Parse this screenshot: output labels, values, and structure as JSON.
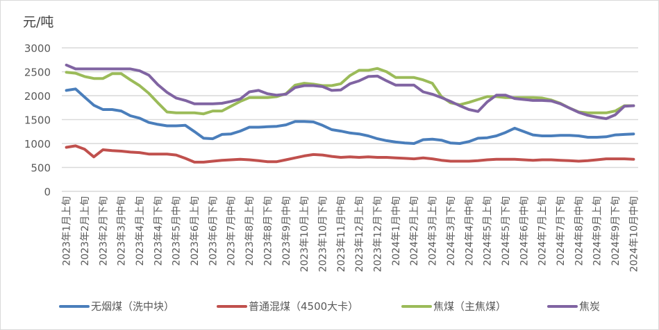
{
  "chart_data": {
    "type": "line",
    "title": "",
    "ylabel": "元/吨",
    "xlabel": "",
    "ylim": [
      0,
      3000
    ],
    "yticks": [
      0,
      500,
      1000,
      1500,
      2000,
      2500,
      3000
    ],
    "grid": true,
    "legend_position": "bottom",
    "num_points": 63,
    "visible_xtick_labels": [
      "2023年1月上旬",
      "2023年2月上旬",
      "2023年2月下旬",
      "2023年3月中旬",
      "2023年4月上旬",
      "2023年4月下旬",
      "2023年5月中旬",
      "2023年6月上旬",
      "2023年6月下旬",
      "2023年7月中旬",
      "2023年8月上旬",
      "2023年8月下旬",
      "2023年9月中旬",
      "2023年10月上旬",
      "2023年10月下旬",
      "2023年11月中旬",
      "2023年12月上旬",
      "2023年12月下旬",
      "2024年1月中旬",
      "2024年2月上旬",
      "2024年3月上旬",
      "2024年3月下旬",
      "2024年4月中旬",
      "2024年5月上旬",
      "2024年5月下旬",
      "2024年6月中旬",
      "2024年7月上旬",
      "2024年7月下旬",
      "2024年8月中旬",
      "2024年9月上旬",
      "2024年9月下旬",
      "2024年10月中旬"
    ],
    "xtick_every": 2,
    "series": [
      {
        "name": "无烟煤（洗中块）",
        "color": "#4a7ebb",
        "values": [
          2110,
          2140,
          1970,
          1800,
          1710,
          1710,
          1680,
          1580,
          1530,
          1440,
          1400,
          1370,
          1370,
          1380,
          1250,
          1110,
          1100,
          1190,
          1200,
          1260,
          1340,
          1340,
          1350,
          1360,
          1390,
          1460,
          1460,
          1450,
          1380,
          1290,
          1260,
          1220,
          1200,
          1160,
          1100,
          1060,
          1030,
          1010,
          1000,
          1080,
          1090,
          1070,
          1010,
          1000,
          1040,
          1110,
          1120,
          1160,
          1230,
          1320,
          1250,
          1180,
          1160,
          1160,
          1170,
          1170,
          1160,
          1130,
          1130,
          1140,
          1180,
          1190,
          1200
        ]
      },
      {
        "name": "普通混煤（4500大卡）",
        "color": "#c0504d",
        "values": [
          920,
          950,
          880,
          720,
          870,
          850,
          840,
          820,
          810,
          780,
          780,
          780,
          760,
          690,
          610,
          610,
          630,
          650,
          660,
          670,
          660,
          640,
          620,
          620,
          660,
          700,
          740,
          770,
          760,
          730,
          710,
          720,
          710,
          720,
          710,
          710,
          700,
          690,
          680,
          700,
          680,
          650,
          630,
          630,
          630,
          640,
          660,
          670,
          670,
          670,
          660,
          650,
          660,
          660,
          650,
          640,
          630,
          640,
          660,
          680,
          680,
          680,
          670
        ]
      },
      {
        "name": "焦煤（主焦煤）",
        "color": "#9bbb59",
        "values": [
          2490,
          2470,
          2400,
          2360,
          2360,
          2460,
          2460,
          2330,
          2210,
          2050,
          1850,
          1660,
          1640,
          1640,
          1640,
          1620,
          1680,
          1680,
          1780,
          1880,
          1960,
          1960,
          1960,
          1980,
          2040,
          2220,
          2260,
          2240,
          2210,
          2210,
          2250,
          2420,
          2530,
          2530,
          2570,
          2500,
          2380,
          2380,
          2380,
          2330,
          2260,
          1980,
          1850,
          1810,
          1860,
          1920,
          1980,
          1980,
          1960,
          1960,
          1960,
          1960,
          1950,
          1910,
          1840,
          1740,
          1660,
          1640,
          1640,
          1640,
          1680,
          1790,
          1790
        ]
      },
      {
        "name": "焦炭",
        "color": "#8064a2",
        "values": [
          2640,
          2560,
          2560,
          2560,
          2560,
          2560,
          2560,
          2560,
          2520,
          2430,
          2230,
          2070,
          1950,
          1900,
          1830,
          1830,
          1830,
          1840,
          1880,
          1930,
          2080,
          2110,
          2040,
          2010,
          2030,
          2170,
          2210,
          2210,
          2190,
          2110,
          2120,
          2250,
          2310,
          2400,
          2410,
          2310,
          2220,
          2220,
          2220,
          2080,
          2030,
          1960,
          1880,
          1790,
          1710,
          1670,
          1870,
          2010,
          2010,
          1940,
          1920,
          1900,
          1900,
          1890,
          1830,
          1740,
          1650,
          1590,
          1550,
          1520,
          1600,
          1780,
          1790
        ]
      }
    ]
  },
  "unit_label": "元/吨",
  "legend": [
    {
      "label": "无烟煤（洗中块）",
      "color": "#4a7ebb"
    },
    {
      "label": "普通混煤（4500大卡）",
      "color": "#c0504d"
    },
    {
      "label": "焦煤（主焦煤）",
      "color": "#9bbb59"
    },
    {
      "label": "焦炭",
      "color": "#8064a2"
    }
  ]
}
